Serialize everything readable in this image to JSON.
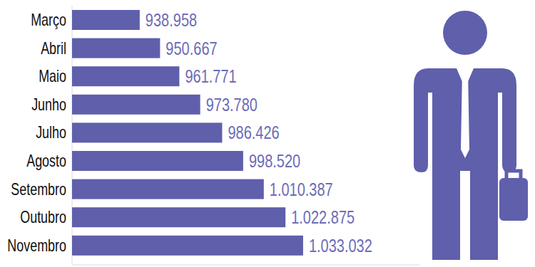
{
  "chart_data": {
    "type": "bar",
    "orientation": "horizontal",
    "categories": [
      "Março",
      "Abril",
      "Maio",
      "Junho",
      "Julho",
      "Agosto",
      "Setembro",
      "Outubro",
      "Novembro"
    ],
    "values": [
      938958,
      950667,
      961771,
      973780,
      986426,
      998520,
      1010387,
      1022875,
      1033032
    ],
    "value_labels": [
      "938.958",
      "950.667",
      "961.771",
      "973.780",
      "986.426",
      "998.520",
      "1.010.387",
      "1.022.875",
      "1.033.032"
    ],
    "color": "#5f5fac",
    "xlim": [
      900000,
      1100000
    ],
    "data_labels": true,
    "tick_labels": "y",
    "grid": false
  }
}
